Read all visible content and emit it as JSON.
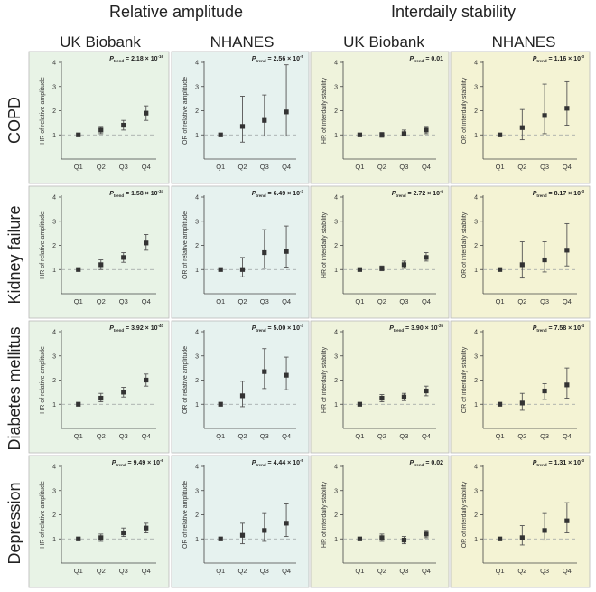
{
  "headers": {
    "relative_amplitude": "Relative amplitude",
    "interdaily_stability": "Interdaily stability",
    "cohorts": [
      "UK Biobank",
      "NHANES",
      "UK Biobank",
      "NHANES"
    ]
  },
  "diseases": [
    "COPD",
    "Kidney failure",
    "Diabetes mellitus",
    "Depression"
  ],
  "colors": {
    "green_panel": "#e8f3e6",
    "blue_panel": "#e6f2ef",
    "yellow_green_panel": "#eff3dc",
    "yellow_panel": "#f4f3d4",
    "marker": "#333333",
    "reference": "#9aa0a0"
  },
  "chart_data": [
    {
      "type": "scatter",
      "row": "COPD",
      "col": "UK Biobank",
      "ylabel": "HR of relative amplitude",
      "ylim": [
        0,
        4
      ],
      "ref": 1,
      "categories": [
        "Q1",
        "Q2",
        "Q3",
        "Q4"
      ],
      "ptrend_base": "2.18",
      "ptrend_exp": "-16",
      "values": [
        1,
        1.2,
        1.4,
        1.9
      ],
      "lower": [
        1,
        1.05,
        1.2,
        1.6
      ],
      "upper": [
        1,
        1.35,
        1.6,
        2.2
      ]
    },
    {
      "type": "scatter",
      "row": "COPD",
      "col": "NHANES",
      "ylabel": "OR of relative amplitude",
      "ylim": [
        0,
        4
      ],
      "ref": 1,
      "categories": [
        "Q1",
        "Q2",
        "Q3",
        "Q4"
      ],
      "ptrend_base": "2.56",
      "ptrend_exp": "-5",
      "values": [
        1,
        1.35,
        1.6,
        1.95
      ],
      "lower": [
        1,
        0.7,
        0.95,
        0.95
      ],
      "upper": [
        1,
        2.6,
        2.65,
        3.9
      ]
    },
    {
      "type": "scatter",
      "row": "COPD",
      "col": "UK Biobank",
      "ylabel": "HR of interdaily stability",
      "ylim": [
        0,
        4
      ],
      "ref": 1,
      "categories": [
        "Q1",
        "Q2",
        "Q3",
        "Q4"
      ],
      "ptrend_base": "0.01",
      "ptrend_exp": "",
      "values": [
        1,
        1,
        1.05,
        1.2
      ],
      "lower": [
        1,
        0.9,
        0.95,
        1.05
      ],
      "upper": [
        1,
        1.1,
        1.2,
        1.35
      ]
    },
    {
      "type": "scatter",
      "row": "COPD",
      "col": "NHANES",
      "ylabel": "OR of interdaily stability",
      "ylim": [
        0,
        4
      ],
      "ref": 1,
      "categories": [
        "Q1",
        "Q2",
        "Q3",
        "Q4"
      ],
      "ptrend_base": "1.16",
      "ptrend_exp": "-3",
      "values": [
        1,
        1.3,
        1.8,
        2.1
      ],
      "lower": [
        1,
        0.8,
        1.05,
        1.4
      ],
      "upper": [
        1,
        2.05,
        3.1,
        3.2
      ]
    },
    {
      "type": "scatter",
      "row": "Kidney failure",
      "col": "UK Biobank",
      "ylabel": "HR of relative amplitude",
      "ylim": [
        0,
        4
      ],
      "ref": 1,
      "categories": [
        "Q1",
        "Q2",
        "Q3",
        "Q4"
      ],
      "ptrend_base": "1.58",
      "ptrend_exp": "-34",
      "values": [
        1,
        1.2,
        1.5,
        2.1
      ],
      "lower": [
        1,
        1.0,
        1.3,
        1.8
      ],
      "upper": [
        1,
        1.4,
        1.7,
        2.45
      ]
    },
    {
      "type": "scatter",
      "row": "Kidney failure",
      "col": "NHANES",
      "ylabel": "OR of relative amplitude",
      "ylim": [
        0,
        4
      ],
      "ref": 1,
      "categories": [
        "Q1",
        "Q2",
        "Q3",
        "Q4"
      ],
      "ptrend_base": "6.49",
      "ptrend_exp": "-3",
      "values": [
        1,
        1,
        1.7,
        1.75
      ],
      "lower": [
        1,
        0.7,
        1.05,
        1.1
      ],
      "upper": [
        1,
        1.5,
        2.65,
        2.8
      ]
    },
    {
      "type": "scatter",
      "row": "Kidney failure",
      "col": "UK Biobank",
      "ylabel": "HR of interdaily stability",
      "ylim": [
        0,
        4
      ],
      "ref": 1,
      "categories": [
        "Q1",
        "Q2",
        "Q3",
        "Q4"
      ],
      "ptrend_base": "2.72",
      "ptrend_exp": "-6",
      "values": [
        1,
        1.05,
        1.2,
        1.5
      ],
      "lower": [
        1,
        0.95,
        1.05,
        1.35
      ],
      "upper": [
        1,
        1.15,
        1.35,
        1.7
      ]
    },
    {
      "type": "scatter",
      "row": "Kidney failure",
      "col": "NHANES",
      "ylabel": "OR of interdaily stability",
      "ylim": [
        0,
        4
      ],
      "ref": 1,
      "categories": [
        "Q1",
        "Q2",
        "Q3",
        "Q4"
      ],
      "ptrend_base": "8.17",
      "ptrend_exp": "-3",
      "values": [
        1,
        1.2,
        1.4,
        1.8
      ],
      "lower": [
        1,
        0.65,
        0.9,
        1.15
      ],
      "upper": [
        1,
        2.15,
        2.15,
        2.9
      ]
    },
    {
      "type": "scatter",
      "row": "Diabetes mellitus",
      "col": "UK Biobank",
      "ylabel": "HR of relative amplitude",
      "ylim": [
        0,
        4
      ],
      "ref": 1,
      "categories": [
        "Q1",
        "Q2",
        "Q3",
        "Q4"
      ],
      "ptrend_base": "3.92",
      "ptrend_exp": "-40",
      "values": [
        1,
        1.25,
        1.5,
        2.0
      ],
      "lower": [
        1,
        1.1,
        1.3,
        1.75
      ],
      "upper": [
        1,
        1.45,
        1.7,
        2.25
      ]
    },
    {
      "type": "scatter",
      "row": "Diabetes mellitus",
      "col": "NHANES",
      "ylabel": "OR of relative amplitude",
      "ylim": [
        0,
        4
      ],
      "ref": 1,
      "categories": [
        "Q1",
        "Q2",
        "Q3",
        "Q4"
      ],
      "ptrend_base": "5.00",
      "ptrend_exp": "-4",
      "values": [
        1,
        1.35,
        2.35,
        2.2
      ],
      "lower": [
        1,
        0.9,
        1.65,
        1.6
      ],
      "upper": [
        1,
        1.95,
        3.3,
        2.95
      ]
    },
    {
      "type": "scatter",
      "row": "Diabetes mellitus",
      "col": "UK Biobank",
      "ylabel": "HR of interdaily stability",
      "ylim": [
        0,
        4
      ],
      "ref": 1,
      "categories": [
        "Q1",
        "Q2",
        "Q3",
        "Q4"
      ],
      "ptrend_base": "3.90",
      "ptrend_exp": "-26",
      "values": [
        1,
        1.25,
        1.3,
        1.55
      ],
      "lower": [
        1,
        1.1,
        1.15,
        1.35
      ],
      "upper": [
        1,
        1.4,
        1.45,
        1.75
      ]
    },
    {
      "type": "scatter",
      "row": "Diabetes mellitus",
      "col": "NHANES",
      "ylabel": "OR of interdaily stability",
      "ylim": [
        0,
        4
      ],
      "ref": 1,
      "categories": [
        "Q1",
        "Q2",
        "Q3",
        "Q4"
      ],
      "ptrend_base": "7.58",
      "ptrend_exp": "-4",
      "values": [
        1,
        1.05,
        1.55,
        1.8
      ],
      "lower": [
        1,
        0.75,
        1.2,
        1.25
      ],
      "upper": [
        1,
        1.45,
        1.85,
        2.5
      ]
    },
    {
      "type": "scatter",
      "row": "Depression",
      "col": "UK Biobank",
      "ylabel": "HR of relative amplitude",
      "ylim": [
        0,
        4
      ],
      "ref": 1,
      "categories": [
        "Q1",
        "Q2",
        "Q3",
        "Q4"
      ],
      "ptrend_base": "9.49",
      "ptrend_exp": "-6",
      "values": [
        1,
        1.05,
        1.25,
        1.45
      ],
      "lower": [
        1,
        0.9,
        1.1,
        1.25
      ],
      "upper": [
        1,
        1.2,
        1.45,
        1.65
      ]
    },
    {
      "type": "scatter",
      "row": "Depression",
      "col": "NHANES",
      "ylabel": "OR of relative amplitude",
      "ylim": [
        0,
        4
      ],
      "ref": 1,
      "categories": [
        "Q1",
        "Q2",
        "Q3",
        "Q4"
      ],
      "ptrend_base": "4.44",
      "ptrend_exp": "-5",
      "values": [
        1,
        1.15,
        1.35,
        1.65
      ],
      "lower": [
        1,
        0.8,
        0.9,
        1.1
      ],
      "upper": [
        1,
        1.65,
        2.05,
        2.45
      ]
    },
    {
      "type": "scatter",
      "row": "Depression",
      "col": "UK Biobank",
      "ylabel": "HR of interdaily stability",
      "ylim": [
        0,
        4
      ],
      "ref": 1,
      "categories": [
        "Q1",
        "Q2",
        "Q3",
        "Q4"
      ],
      "ptrend_base": "0.02",
      "ptrend_exp": "",
      "values": [
        1,
        1.05,
        0.95,
        1.2
      ],
      "lower": [
        1,
        0.9,
        0.8,
        1.05
      ],
      "upper": [
        1,
        1.2,
        1.1,
        1.35
      ]
    },
    {
      "type": "scatter",
      "row": "Depression",
      "col": "NHANES",
      "ylabel": "OR of interdaily stability",
      "ylim": [
        0,
        4
      ],
      "ref": 1,
      "categories": [
        "Q1",
        "Q2",
        "Q3",
        "Q4"
      ],
      "ptrend_base": "1.31",
      "ptrend_exp": "-3",
      "values": [
        1,
        1.05,
        1.35,
        1.75
      ],
      "lower": [
        1,
        0.75,
        0.95,
        1.25
      ],
      "upper": [
        1,
        1.55,
        2.05,
        2.5
      ]
    }
  ]
}
